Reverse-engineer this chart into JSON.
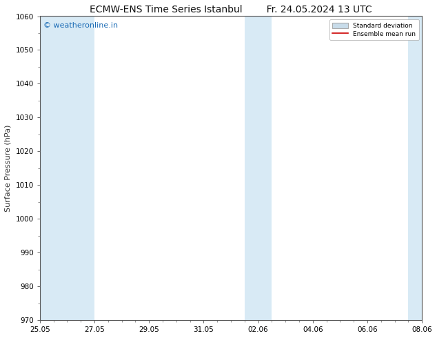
{
  "title_left": "ECMW-ENS Time Series Istanbul",
  "title_right": "Fr. 24.05.2024 13 UTC",
  "ylabel": "Surface Pressure (hPa)",
  "ylim": [
    970,
    1060
  ],
  "yticks": [
    970,
    980,
    990,
    1000,
    1010,
    1020,
    1030,
    1040,
    1050,
    1060
  ],
  "xlim": [
    0,
    14
  ],
  "xtick_labels": [
    "25.05",
    "27.05",
    "29.05",
    "31.05",
    "02.06",
    "04.06",
    "06.06",
    "08.06"
  ],
  "xtick_positions": [
    0,
    2,
    4,
    6,
    8,
    10,
    12,
    14
  ],
  "shaded_bands": [
    {
      "x_start": 0.0,
      "x_end": 0.5,
      "color": "#daeaf5"
    },
    {
      "x_start": 0.5,
      "x_end": 2.0,
      "color": "#daeaf5"
    },
    {
      "x_start": 7.5,
      "x_end": 8.0,
      "color": "#daeaf5"
    },
    {
      "x_start": 8.0,
      "x_end": 8.5,
      "color": "#daeaf5"
    },
    {
      "x_start": 13.5,
      "x_end": 14.0,
      "color": "#daeaf5"
    }
  ],
  "background_color": "#ffffff",
  "plot_bg_color": "#ffffff",
  "watermark_text": "© weatheronline.in",
  "watermark_color": "#1a6bb5",
  "legend_std_dev_color": "#c8dcea",
  "legend_mean_color": "#cc0000",
  "title_fontsize": 10,
  "axis_label_fontsize": 8,
  "tick_fontsize": 7.5
}
